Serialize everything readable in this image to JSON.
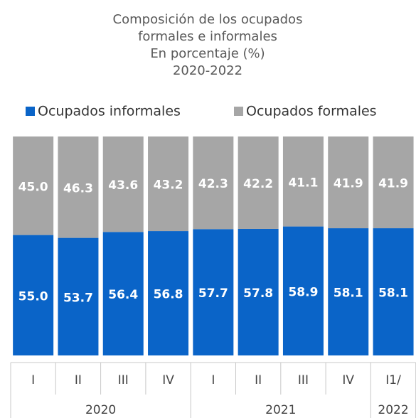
{
  "chart_data": {
    "type": "stacked_bar",
    "title": [
      "Composición de los ocupados",
      "formales e informales",
      "En porcentaje (%)",
      "2020-2022"
    ],
    "categories": [
      "I",
      "II",
      "III",
      "IV",
      "I",
      "II",
      "III",
      "IV",
      "I1/"
    ],
    "category_groups": [
      {
        "label": "2020",
        "count": 4
      },
      {
        "label": "2021",
        "count": 4
      },
      {
        "label": "2022",
        "count": 1
      }
    ],
    "series": [
      {
        "name": "Ocupados informales",
        "color": "#0a64c8",
        "values": [
          55.0,
          53.7,
          56.4,
          56.8,
          57.7,
          57.8,
          58.9,
          58.1,
          58.1
        ],
        "value_labels": [
          "55.0",
          "53.7",
          "56.4",
          "56.8",
          "57.7",
          "57.8",
          "58.9",
          "58.1",
          "58.1"
        ]
      },
      {
        "name": "Ocupados formales",
        "color": "#a6a6a6",
        "values": [
          45.0,
          46.3,
          43.6,
          43.2,
          42.3,
          42.2,
          41.1,
          41.9,
          41.9
        ],
        "value_labels": [
          "45.0",
          "46.3",
          "43.6",
          "43.2",
          "42.3",
          "42.2",
          "41.1",
          "41.9",
          "41.9"
        ]
      }
    ],
    "ylim": [
      0,
      100
    ]
  }
}
